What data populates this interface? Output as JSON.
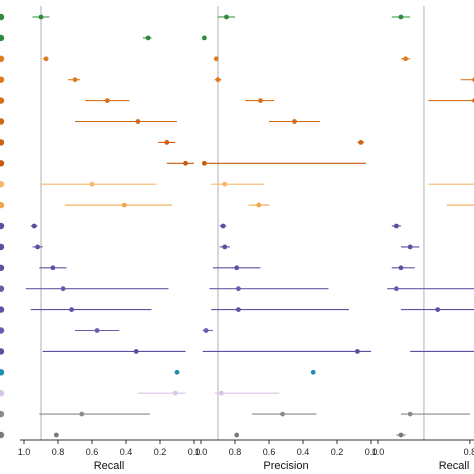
{
  "chart_data": [
    {
      "type": "scatter",
      "xlabel": "Recall",
      "xlim": [
        1.0,
        0.0
      ],
      "x_ticks": [
        "1.0",
        "0.8",
        "0.6",
        "0.4",
        "0.2",
        "0.0"
      ],
      "reference_line": 0.9,
      "points": [
        {
          "value": 0.9,
          "low": 0.85,
          "high": 0.95,
          "color": "#2e8b3a"
        },
        {
          "value": 0.27,
          "low": 0.25,
          "high": 0.3,
          "color": "#2e8b3a"
        },
        {
          "value": 0.87,
          "low": 0.86,
          "high": 0.89,
          "color": "#e07b20"
        },
        {
          "value": 0.7,
          "low": 0.67,
          "high": 0.74,
          "color": "#e07b20"
        },
        {
          "value": 0.51,
          "low": 0.38,
          "high": 0.64,
          "color": "#d8701a"
        },
        {
          "value": 0.33,
          "low": 0.1,
          "high": 0.7,
          "color": "#cc6a14"
        },
        {
          "value": 0.16,
          "low": 0.11,
          "high": 0.21,
          "color": "#d06010"
        },
        {
          "value": 0.05,
          "low": 0.0,
          "high": 0.16,
          "color": "#c85a10"
        },
        {
          "value": 0.6,
          "low": 0.22,
          "high": 0.9,
          "color": "#f5b86a"
        },
        {
          "value": 0.41,
          "low": 0.13,
          "high": 0.76,
          "color": "#f0a850"
        },
        {
          "value": 0.94,
          "low": 0.92,
          "high": 0.96,
          "color": "#5a4fa0"
        },
        {
          "value": 0.92,
          "low": 0.89,
          "high": 0.95,
          "color": "#5a4fa0"
        },
        {
          "value": 0.83,
          "low": 0.75,
          "high": 0.91,
          "color": "#5e52a2"
        },
        {
          "value": 0.77,
          "low": 0.15,
          "high": 0.99,
          "color": "#6a5aa8"
        },
        {
          "value": 0.72,
          "low": 0.25,
          "high": 0.96,
          "color": "#5e52a2"
        },
        {
          "value": 0.57,
          "low": 0.44,
          "high": 0.7,
          "color": "#6b5eae"
        },
        {
          "value": 0.34,
          "low": 0.05,
          "high": 0.89,
          "color": "#5a4fa0"
        },
        {
          "value": 0.1,
          "low": 0.09,
          "high": 0.11,
          "color": "#1a8fb0"
        },
        {
          "value": 0.11,
          "low": 0.05,
          "high": 0.33,
          "color": "#d8c4e6"
        },
        {
          "value": 0.66,
          "low": 0.26,
          "high": 0.91,
          "color": "#8a8a8a"
        },
        {
          "value": 0.81,
          "low": 0.8,
          "high": 0.82,
          "color": "#7a7a7a"
        }
      ]
    },
    {
      "type": "scatter",
      "xlabel": "Precision",
      "xlim": [
        1.0,
        0.0
      ],
      "x_ticks": [
        "1.0",
        "0.8",
        "0.6",
        "0.4",
        "0.2",
        "0.0"
      ],
      "reference_line": 0.9,
      "points": [
        {
          "value": 0.85,
          "low": 0.8,
          "high": 0.9,
          "color": "#2e8b3a"
        },
        {
          "value": 0.98,
          "low": 0.97,
          "high": 0.99,
          "color": "#2e8b3a"
        },
        {
          "value": 0.91,
          "low": 0.9,
          "high": 0.92,
          "color": "#e07b20"
        },
        {
          "value": 0.9,
          "low": 0.88,
          "high": 0.92,
          "color": "#e07b20"
        },
        {
          "value": 0.65,
          "low": 0.57,
          "high": 0.74,
          "color": "#d8701a"
        },
        {
          "value": 0.45,
          "low": 0.3,
          "high": 0.6,
          "color": "#cc6a14"
        },
        {
          "value": 0.06,
          "low": 0.04,
          "high": 0.08,
          "color": "#d06010"
        },
        {
          "value": 0.98,
          "low": 0.03,
          "high": 0.99,
          "color": "#c85a10"
        },
        {
          "value": 0.86,
          "low": 0.63,
          "high": 0.94,
          "color": "#f5b86a"
        },
        {
          "value": 0.66,
          "low": 0.6,
          "high": 0.72,
          "color": "#f0a850"
        },
        {
          "value": 0.87,
          "low": 0.85,
          "high": 0.89,
          "color": "#5a4fa0"
        },
        {
          "value": 0.86,
          "low": 0.83,
          "high": 0.89,
          "color": "#5a4fa0"
        },
        {
          "value": 0.79,
          "low": 0.65,
          "high": 0.93,
          "color": "#5e52a2"
        },
        {
          "value": 0.78,
          "low": 0.25,
          "high": 0.95,
          "color": "#6a5aa8"
        },
        {
          "value": 0.78,
          "low": 0.13,
          "high": 0.94,
          "color": "#5e52a2"
        },
        {
          "value": 0.97,
          "low": 0.93,
          "high": 0.99,
          "color": "#6b5eae"
        },
        {
          "value": 0.08,
          "low": 0.0,
          "high": 0.99,
          "color": "#5a4fa0"
        },
        {
          "value": 0.34,
          "low": 0.33,
          "high": 0.35,
          "color": "#1a8fb0"
        },
        {
          "value": 0.88,
          "low": 0.54,
          "high": 0.92,
          "color": "#d8c4e6"
        },
        {
          "value": 0.52,
          "low": 0.32,
          "high": 0.7,
          "color": "#8a8a8a"
        },
        {
          "value": 0.79,
          "low": 0.78,
          "high": 0.8,
          "color": "#7a7a7a"
        }
      ]
    },
    {
      "type": "scatter",
      "xlabel": "Recall",
      "xlim": [
        1.0,
        0.63
      ],
      "x_ticks": [
        "1.0",
        "0.8"
      ],
      "reference_line": 0.9,
      "points": [
        {
          "value": 0.95,
          "low": 0.93,
          "high": 0.97,
          "color": "#2e8b3a"
        },
        {
          "value": 0.7,
          "low": 0.68,
          "high": 0.72,
          "color": "#2e8b3a"
        },
        {
          "value": 0.94,
          "low": 0.93,
          "high": 0.95,
          "color": "#e07b20"
        },
        {
          "value": 0.79,
          "low": 0.76,
          "high": 0.82,
          "color": "#e07b20"
        },
        {
          "value": 0.79,
          "low": 0.69,
          "high": 0.89,
          "color": "#d8701a"
        },
        {
          "value": 0.62,
          "low": 0.6,
          "high": 0.69,
          "color": "#cc6a14"
        },
        {
          "value": 0.62,
          "low": 0.6,
          "high": 0.66,
          "color": "#d06010"
        },
        {
          "value": 0.6,
          "low": 0.59,
          "high": 0.61,
          "color": "#c85a10"
        },
        {
          "value": 0.74,
          "low": 0.6,
          "high": 0.89,
          "color": "#f5b86a"
        },
        {
          "value": 0.69,
          "low": 0.6,
          "high": 0.85,
          "color": "#f0a850"
        },
        {
          "value": 0.96,
          "low": 0.95,
          "high": 0.97,
          "color": "#5a4fa0"
        },
        {
          "value": 0.93,
          "low": 0.91,
          "high": 0.95,
          "color": "#5a4fa0"
        },
        {
          "value": 0.95,
          "low": 0.92,
          "high": 0.97,
          "color": "#5e52a2"
        },
        {
          "value": 0.96,
          "low": 0.62,
          "high": 0.98,
          "color": "#6a5aa8"
        },
        {
          "value": 0.87,
          "low": 0.62,
          "high": 0.95,
          "color": "#5e52a2"
        },
        {
          "value": 0.69,
          "low": 0.66,
          "high": 0.74,
          "color": "#6b5eae"
        },
        {
          "value": 0.66,
          "low": 0.6,
          "high": 0.93,
          "color": "#5a4fa0"
        },
        {
          "value": 0.62,
          "low": 0.61,
          "high": 0.63,
          "color": "#1a8fb0"
        },
        {
          "value": 0.62,
          "low": 0.6,
          "high": 0.74,
          "color": "#d8c4e6"
        },
        {
          "value": 0.93,
          "low": 0.8,
          "high": 0.95,
          "color": "#8a8a8a"
        },
        {
          "value": 0.95,
          "low": 0.94,
          "high": 0.96,
          "color": "#7a7a7a"
        }
      ]
    }
  ],
  "row_marker_colors": [
    "#2e8b3a",
    "#2e8b3a",
    "#e07b20",
    "#e07b20",
    "#d8701a",
    "#cc6a14",
    "#d06010",
    "#c85a10",
    "#f5b86a",
    "#f0a850",
    "#5a4fa0",
    "#5a4fa0",
    "#5e52a2",
    "#6a5aa8",
    "#5e52a2",
    "#6b5eae",
    "#5a4fa0",
    "#1a8fb0",
    "#d8c4e6",
    "#8a8a8a",
    "#7a7a7a"
  ],
  "colors": {
    "reference_line": "#b0b0b0",
    "axis": "#333333"
  }
}
